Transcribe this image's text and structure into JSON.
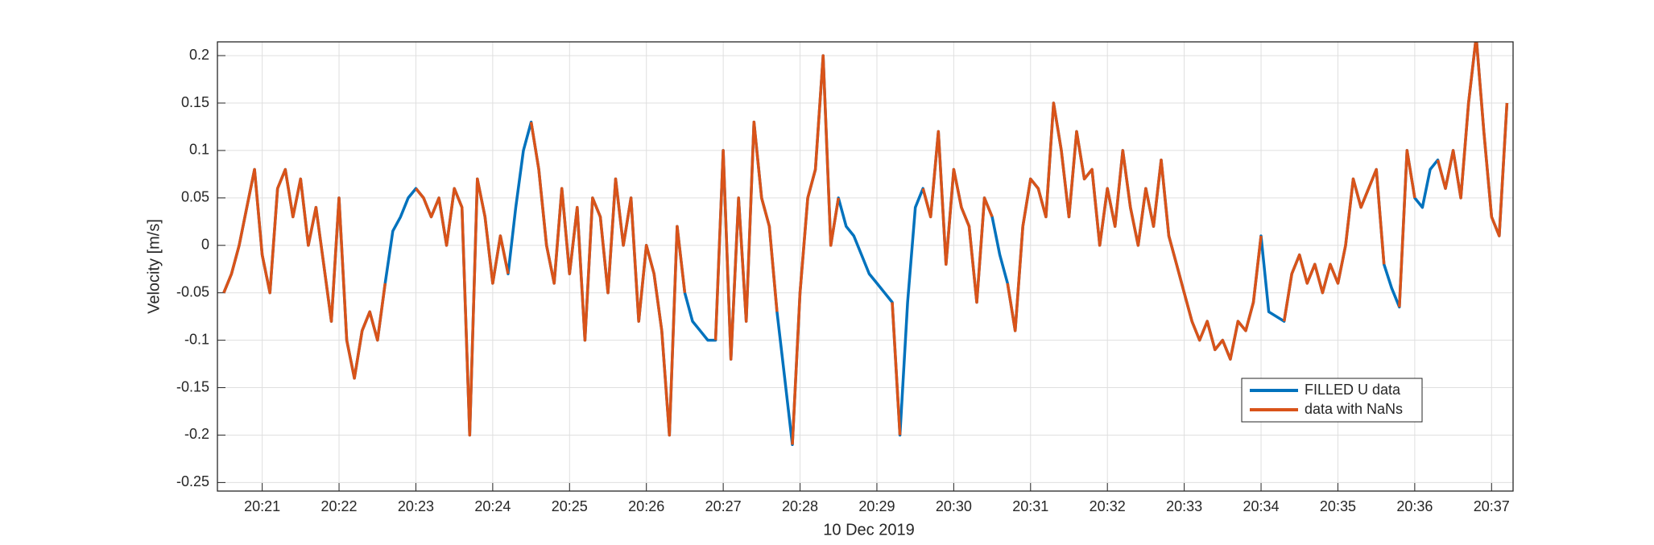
{
  "chart_data": {
    "type": "line",
    "xlabel": "10 Dec 2019",
    "ylabel": "Velocity [m/s]",
    "x": [
      20.5,
      20.6,
      20.7,
      20.8,
      20.9,
      21.0,
      21.1,
      21.2,
      21.3,
      21.4,
      21.5,
      21.6,
      21.7,
      21.8,
      21.9,
      22.0,
      22.1,
      22.2,
      22.3,
      22.4,
      22.5,
      22.6,
      22.7,
      22.8,
      22.9,
      23.0,
      23.1,
      23.2,
      23.3,
      23.4,
      23.5,
      23.6,
      23.7,
      23.8,
      23.9,
      24.0,
      24.1,
      24.2,
      24.3,
      24.4,
      24.5,
      24.6,
      24.7,
      24.8,
      24.9,
      25.0,
      25.1,
      25.2,
      25.3,
      25.4,
      25.5,
      25.6,
      25.7,
      25.8,
      25.9,
      26.0,
      26.1,
      26.2,
      26.3,
      26.4,
      26.5,
      26.6,
      26.7,
      26.8,
      26.9,
      27.0,
      27.1,
      27.2,
      27.3,
      27.4,
      27.5,
      27.6,
      27.7,
      27.8,
      27.9,
      28.0,
      28.1,
      28.2,
      28.3,
      28.4,
      28.5,
      28.6,
      28.7,
      28.8,
      28.9,
      29.0,
      29.1,
      29.2,
      29.3,
      29.4,
      29.5,
      29.6,
      29.7,
      29.8,
      29.9,
      30.0,
      30.1,
      30.2,
      30.3,
      30.4,
      30.5,
      30.6,
      30.7,
      30.8,
      30.9,
      31.0,
      31.1,
      31.2,
      31.3,
      31.4,
      31.5,
      31.6,
      31.7,
      31.8,
      31.9,
      32.0,
      32.1,
      32.2,
      32.3,
      32.4,
      32.5,
      32.6,
      32.7,
      32.8,
      32.9,
      33.0,
      33.1,
      33.2,
      33.3,
      33.4,
      33.5,
      33.6,
      33.7,
      33.8,
      33.9,
      34.0,
      34.1,
      34.2,
      34.3,
      34.4,
      34.5,
      34.6,
      34.7,
      34.8,
      34.9,
      35.0,
      35.1,
      35.2,
      35.3,
      35.4,
      35.5,
      35.6,
      35.7,
      35.8,
      35.9,
      36.0,
      36.1,
      36.2,
      36.3,
      36.4,
      36.5,
      36.6,
      36.7,
      36.8,
      36.9,
      37.0,
      37.1,
      37.2
    ],
    "series": [
      {
        "name": "FILLED U data",
        "color": "#0072bd",
        "values": [
          -0.05,
          -0.03,
          0.0,
          0.04,
          0.08,
          -0.01,
          -0.05,
          0.06,
          0.08,
          0.03,
          0.07,
          0.0,
          0.04,
          -0.02,
          -0.08,
          0.05,
          -0.1,
          -0.14,
          -0.09,
          -0.07,
          -0.1,
          -0.04,
          0.015,
          0.03,
          0.05,
          0.06,
          0.05,
          0.03,
          0.05,
          0.0,
          0.06,
          0.04,
          -0.2,
          0.07,
          0.03,
          -0.04,
          0.01,
          -0.03,
          0.04,
          0.1,
          0.13,
          0.08,
          0.0,
          -0.04,
          0.06,
          -0.03,
          0.04,
          -0.1,
          0.05,
          0.03,
          -0.05,
          0.07,
          0.0,
          0.05,
          -0.08,
          0.0,
          -0.03,
          -0.09,
          -0.2,
          0.02,
          -0.05,
          -0.08,
          -0.09,
          -0.1,
          -0.1,
          0.1,
          -0.12,
          0.05,
          -0.08,
          0.13,
          0.05,
          0.02,
          -0.07,
          -0.14,
          -0.21,
          -0.05,
          0.05,
          0.08,
          0.2,
          0.0,
          0.05,
          0.02,
          0.01,
          -0.01,
          -0.03,
          -0.04,
          -0.05,
          -0.06,
          -0.2,
          -0.06,
          0.04,
          0.06,
          0.03,
          0.12,
          -0.02,
          0.08,
          0.04,
          0.02,
          -0.06,
          0.05,
          0.03,
          -0.01,
          -0.04,
          -0.09,
          0.02,
          0.07,
          0.06,
          0.03,
          0.15,
          0.1,
          0.03,
          0.12,
          0.07,
          0.08,
          0.0,
          0.06,
          0.02,
          0.1,
          0.04,
          0.0,
          0.06,
          0.02,
          0.09,
          0.01,
          -0.02,
          -0.05,
          -0.08,
          -0.1,
          -0.08,
          -0.11,
          -0.1,
          -0.12,
          -0.08,
          -0.09,
          -0.06,
          0.01,
          -0.07,
          -0.075,
          -0.08,
          -0.03,
          -0.01,
          -0.04,
          -0.02,
          -0.05,
          -0.02,
          -0.04,
          0.0,
          0.07,
          0.04,
          0.06,
          0.08,
          -0.02,
          -0.045,
          -0.065,
          0.1,
          0.05,
          0.04,
          0.08,
          0.09,
          0.06,
          0.1,
          0.05,
          0.15,
          0.22,
          0.12,
          0.03,
          0.01,
          0.15
        ]
      },
      {
        "name": "data with NaNs",
        "color": "#d95319",
        "values": [
          -0.05,
          -0.03,
          0.0,
          0.04,
          0.08,
          -0.01,
          -0.05,
          0.06,
          0.08,
          0.03,
          0.07,
          0.0,
          0.04,
          -0.02,
          -0.08,
          0.05,
          -0.1,
          -0.14,
          -0.09,
          -0.07,
          -0.1,
          -0.04,
          null,
          null,
          null,
          0.06,
          0.05,
          0.03,
          0.05,
          0.0,
          0.06,
          0.04,
          -0.2,
          0.07,
          0.03,
          -0.04,
          0.01,
          -0.03,
          null,
          null,
          0.13,
          0.08,
          0.0,
          -0.04,
          0.06,
          -0.03,
          0.04,
          -0.1,
          0.05,
          0.03,
          -0.05,
          0.07,
          0.0,
          0.05,
          -0.08,
          0.0,
          -0.03,
          -0.09,
          -0.2,
          0.02,
          -0.05,
          null,
          null,
          null,
          -0.1,
          0.1,
          -0.12,
          0.05,
          -0.08,
          0.13,
          0.05,
          0.02,
          -0.07,
          null,
          -0.21,
          -0.05,
          0.05,
          0.08,
          0.2,
          0.0,
          0.05,
          null,
          null,
          null,
          null,
          null,
          null,
          -0.06,
          -0.2,
          null,
          null,
          0.06,
          0.03,
          0.12,
          -0.02,
          0.08,
          0.04,
          0.02,
          -0.06,
          0.05,
          0.03,
          null,
          -0.04,
          -0.09,
          0.02,
          0.07,
          0.06,
          0.03,
          0.15,
          0.1,
          0.03,
          0.12,
          0.07,
          0.08,
          0.0,
          0.06,
          0.02,
          0.1,
          0.04,
          0.0,
          0.06,
          0.02,
          0.09,
          0.01,
          -0.02,
          -0.05,
          -0.08,
          -0.1,
          -0.08,
          -0.11,
          -0.1,
          -0.12,
          -0.08,
          -0.09,
          -0.06,
          0.01,
          null,
          null,
          -0.08,
          -0.03,
          -0.01,
          -0.04,
          -0.02,
          -0.05,
          -0.02,
          -0.04,
          0.0,
          0.07,
          0.04,
          0.06,
          0.08,
          -0.02,
          null,
          -0.065,
          0.1,
          0.05,
          null,
          null,
          0.09,
          0.06,
          0.1,
          0.05,
          0.15,
          0.22,
          0.12,
          0.03,
          0.01,
          0.15
        ]
      }
    ],
    "xlim": [
      20.417,
      37.28
    ],
    "xticks": [
      {
        "value": 21,
        "label": "20:21"
      },
      {
        "value": 22,
        "label": "20:22"
      },
      {
        "value": 23,
        "label": "20:23"
      },
      {
        "value": 24,
        "label": "20:24"
      },
      {
        "value": 25,
        "label": "20:25"
      },
      {
        "value": 26,
        "label": "20:26"
      },
      {
        "value": 27,
        "label": "20:27"
      },
      {
        "value": 28,
        "label": "20:28"
      },
      {
        "value": 29,
        "label": "20:29"
      },
      {
        "value": 30,
        "label": "20:30"
      },
      {
        "value": 31,
        "label": "20:31"
      },
      {
        "value": 32,
        "label": "20:32"
      },
      {
        "value": 33,
        "label": "20:33"
      },
      {
        "value": 34,
        "label": "20:34"
      },
      {
        "value": 35,
        "label": "20:35"
      },
      {
        "value": 36,
        "label": "20:36"
      },
      {
        "value": 37,
        "label": "20:37"
      }
    ],
    "ylim": [
      -0.259,
      0.2145
    ],
    "yticks": [
      0.2,
      0.15,
      0.1,
      0.05,
      0,
      -0.05,
      -0.1,
      -0.15,
      -0.2,
      -0.25
    ],
    "grid": true,
    "legend": "southeast"
  }
}
